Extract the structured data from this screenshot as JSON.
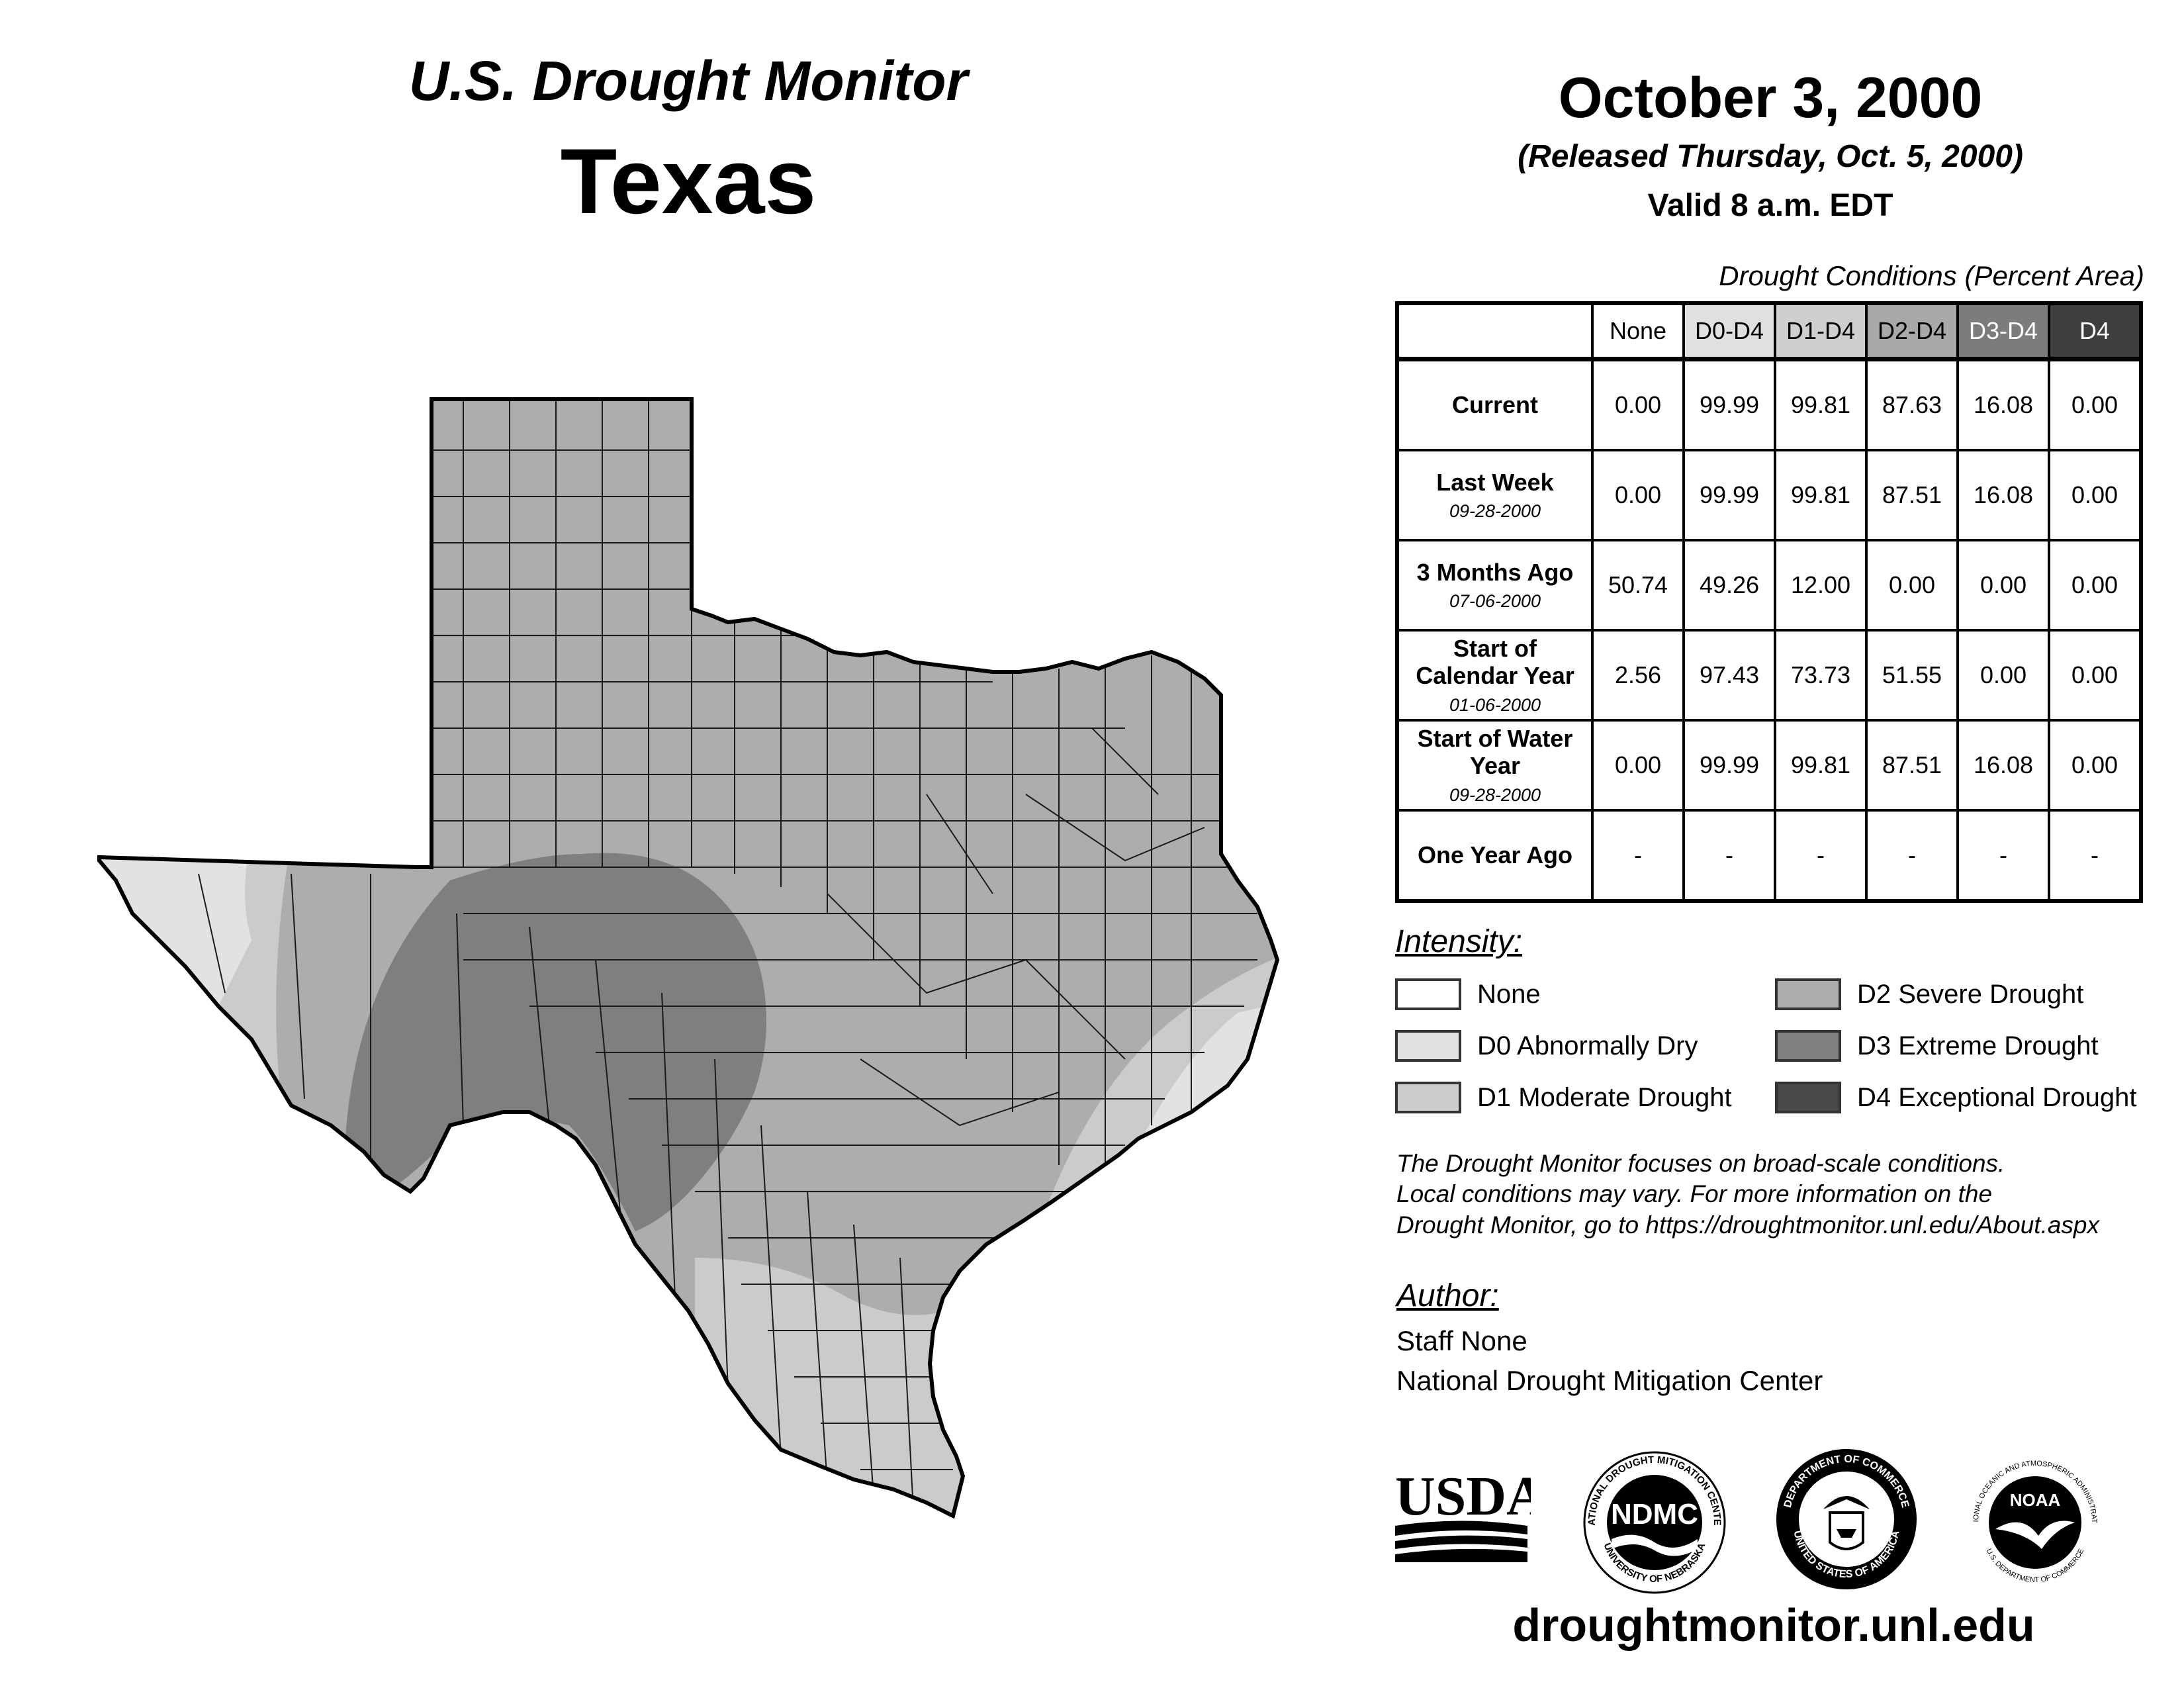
{
  "header": {
    "monitor_title": "U.S. Drought Monitor",
    "state": "Texas",
    "date": "October 3, 2000",
    "released": "(Released Thursday, Oct. 5, 2000)",
    "valid": "Valid 8 a.m. EDT"
  },
  "table": {
    "caption": "Drought Conditions (Percent Area)",
    "columns": [
      "None",
      "D0-D4",
      "D1-D4",
      "D2-D4",
      "D3-D4",
      "D4"
    ],
    "rows": [
      {
        "label": "Current",
        "date": "",
        "values": [
          "0.00",
          "99.99",
          "99.81",
          "87.63",
          "16.08",
          "0.00"
        ]
      },
      {
        "label": "Last Week",
        "date": "09-28-2000",
        "values": [
          "0.00",
          "99.99",
          "99.81",
          "87.51",
          "16.08",
          "0.00"
        ]
      },
      {
        "label": "3 Months Ago",
        "date": "07-06-2000",
        "values": [
          "50.74",
          "49.26",
          "12.00",
          "0.00",
          "0.00",
          "0.00"
        ]
      },
      {
        "label": "Start of Calendar Year",
        "date": "01-06-2000",
        "values": [
          "2.56",
          "97.43",
          "73.73",
          "51.55",
          "0.00",
          "0.00"
        ]
      },
      {
        "label": "Start of Water Year",
        "date": "09-28-2000",
        "values": [
          "0.00",
          "99.99",
          "99.81",
          "87.51",
          "16.08",
          "0.00"
        ]
      },
      {
        "label": "One Year Ago",
        "date": "",
        "values": [
          "-",
          "-",
          "-",
          "-",
          "-",
          "-"
        ]
      }
    ]
  },
  "legend": {
    "title": "Intensity:",
    "items": [
      {
        "label": "None",
        "color": "#ffffff"
      },
      {
        "label": "D0 Abnormally Dry",
        "color": "#e2e2e2"
      },
      {
        "label": "D1 Moderate Drought",
        "color": "#cbcbcb"
      },
      {
        "label": "D2 Severe Drought",
        "color": "#adadad"
      },
      {
        "label": "D3 Extreme Drought",
        "color": "#7f7f7f"
      },
      {
        "label": "D4 Exceptional Drought",
        "color": "#4a4a4a"
      }
    ]
  },
  "note": {
    "line1": "The Drought Monitor focuses on broad-scale conditions.",
    "line2": "Local conditions may vary. For more information on the",
    "line3": "Drought Monitor, go to https://droughtmonitor.unl.edu/About.aspx"
  },
  "author": {
    "title": "Author:",
    "name": "Staff None",
    "org": "National Drought Mitigation Center"
  },
  "logos": {
    "usda": "USDA",
    "ndmc": "NDMC",
    "ndmc_ring_top": "NATIONAL DROUGHT MITIGATION CENTER",
    "ndmc_ring_bottom": "UNIVERSITY OF NEBRASKA",
    "doc_ring_top": "DEPARTMENT OF COMMERCE",
    "doc_ring_bottom": "UNITED STATES OF AMERICA",
    "noaa": "NOAA",
    "noaa_ring_top": "NATIONAL OCEANIC AND ATMOSPHERIC ADMINISTRATION",
    "noaa_ring_bottom": "U.S. DEPARTMENT OF COMMERCE"
  },
  "footer": {
    "url": "droughtmonitor.unl.edu"
  },
  "colors": {
    "d0": "#e2e2e2",
    "d1": "#cbcbcb",
    "d2": "#adadad",
    "d3": "#7f7f7f",
    "d4": "#4a4a4a",
    "header_d0": "#e0e0e0",
    "header_d1": "#cfcfcf",
    "header_d2": "#a9a9a9",
    "header_d3": "#7c7c7c",
    "header_d4": "#3e3e3e"
  }
}
